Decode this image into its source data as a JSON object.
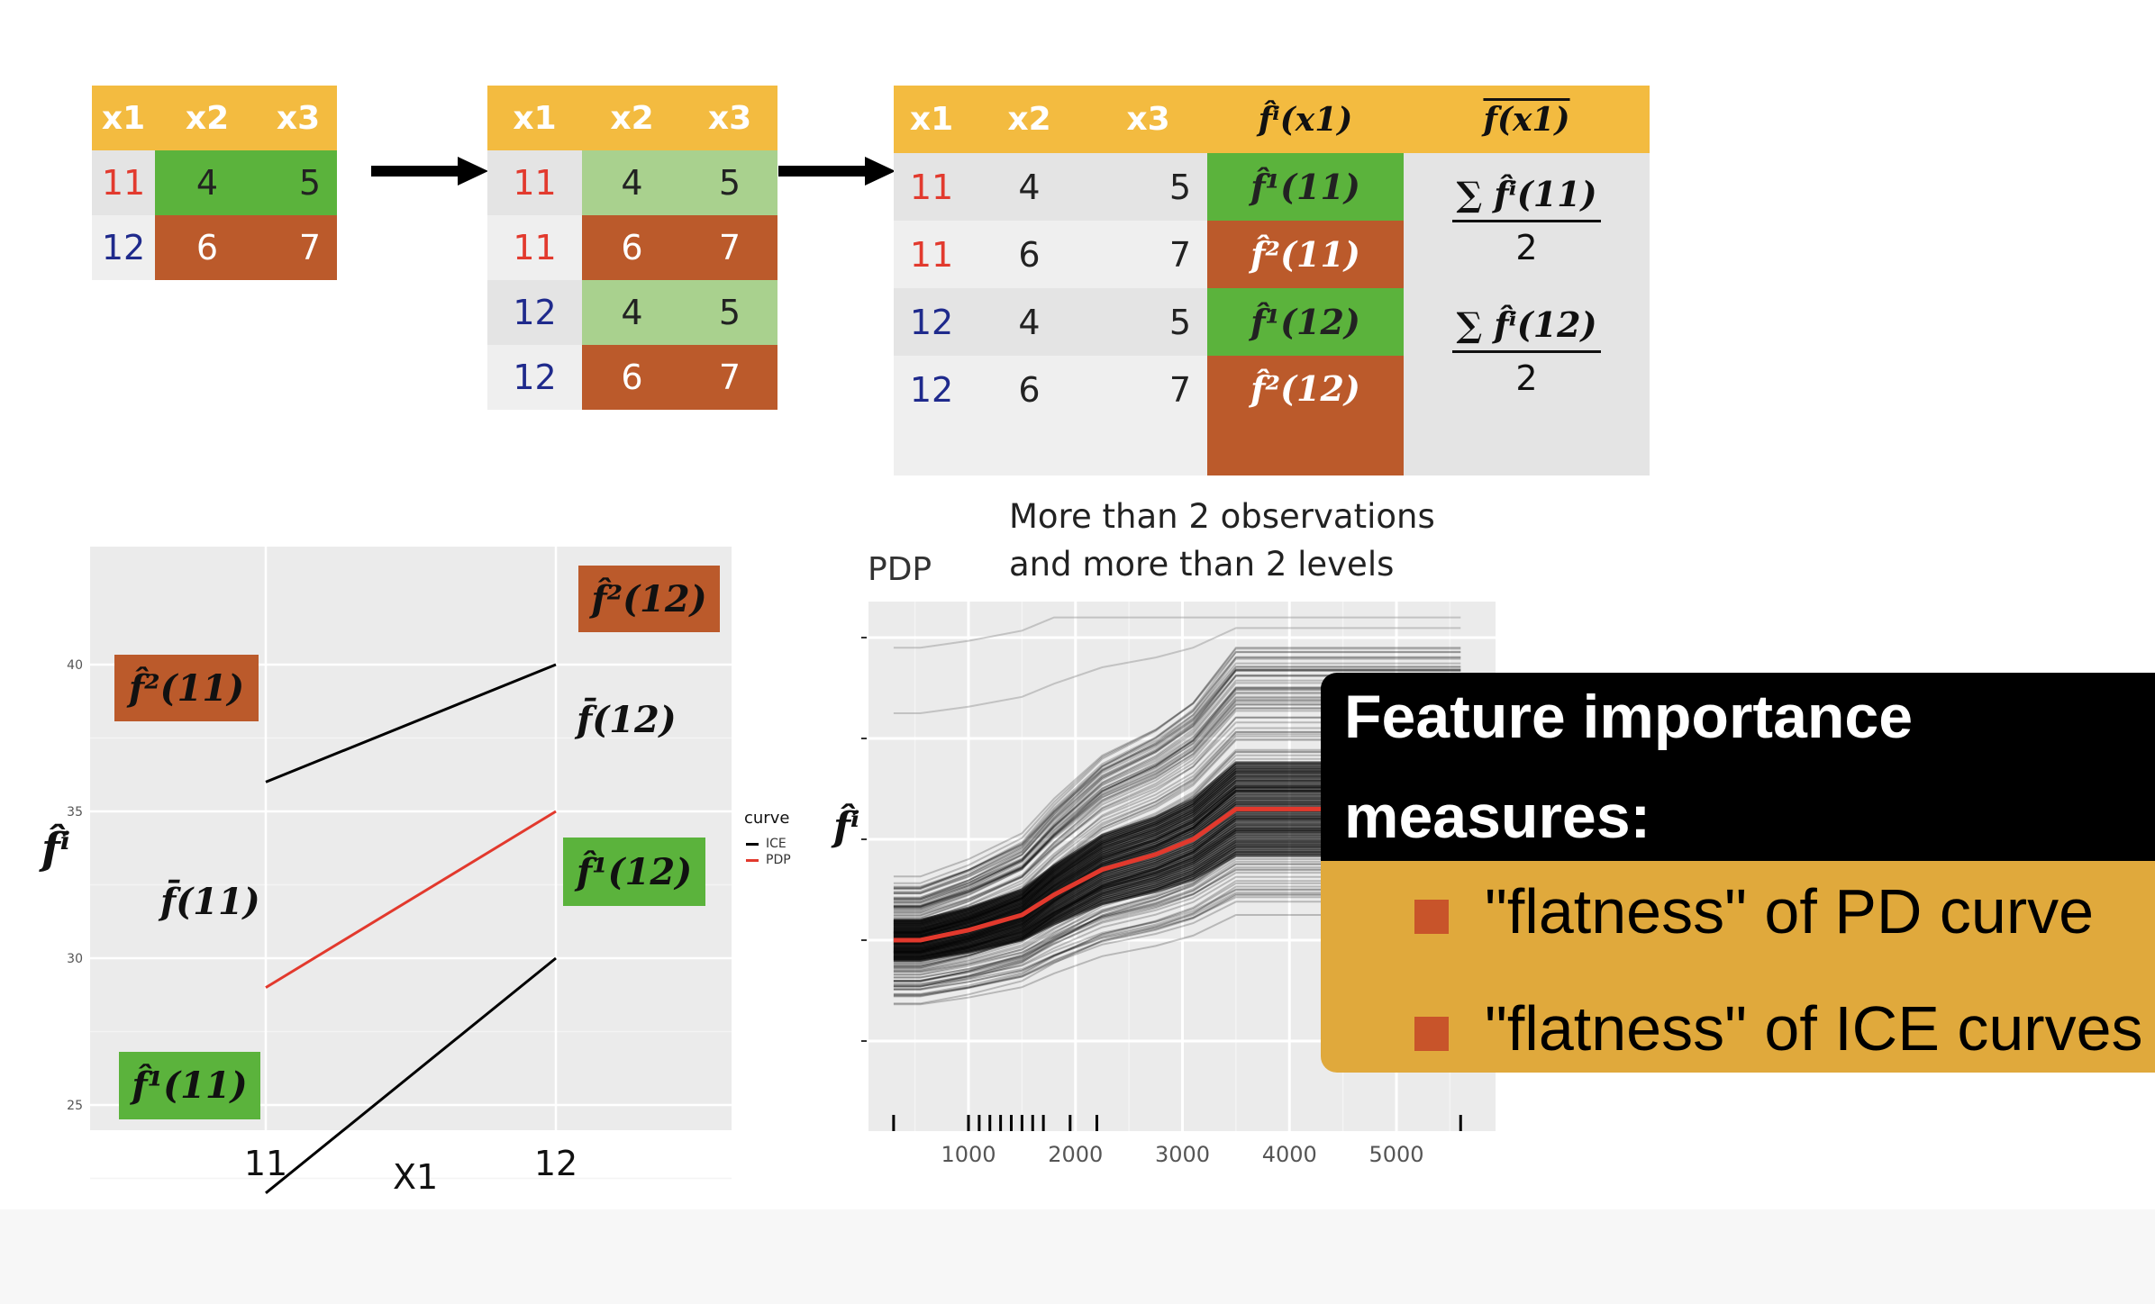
{
  "table1": {
    "headers": [
      "x1",
      "x2",
      "x3"
    ],
    "rows": [
      [
        "11",
        "4",
        "5"
      ],
      [
        "12",
        "6",
        "7"
      ]
    ]
  },
  "table2": {
    "headers": [
      "x1",
      "x2",
      "x3"
    ],
    "rows": [
      [
        "11",
        "4",
        "5"
      ],
      [
        "11",
        "6",
        "7"
      ],
      [
        "12",
        "4",
        "5"
      ],
      [
        "12",
        "6",
        "7"
      ]
    ]
  },
  "table3": {
    "headers": [
      "x1",
      "x2",
      "x3",
      "f̂ⁱ(x1)",
      "f(x1)"
    ],
    "rows": [
      [
        "11",
        "4",
        "5",
        "f̂¹(11)"
      ],
      [
        "11",
        "6",
        "7",
        "f̂²(11)"
      ],
      [
        "12",
        "4",
        "5",
        "f̂¹(12)"
      ],
      [
        "12",
        "6",
        "7",
        "f̂²(12)"
      ]
    ],
    "avg_11_num": "∑ f̂ⁱ(11)",
    "avg_11_den": "2",
    "avg_12_num": "∑ f̂ⁱ(12)",
    "avg_12_den": "2"
  },
  "ice_plot": {
    "y_axis_label": "f̂ⁱ",
    "x_axis_label": "X1",
    "x_ticks": [
      "11",
      "12"
    ],
    "y_ticks": [
      "40",
      "35",
      "30",
      "25"
    ],
    "legend_title": "curve",
    "legend_items": [
      "ICE",
      "PDP"
    ],
    "labels": {
      "f2_11": "f̂²(11)",
      "f2_12": "f̂²(12)",
      "fbar_11": "f̄(11)",
      "fbar_12": "f̄(12)",
      "f1_11": "f̂¹(11)",
      "f1_12": "f̂¹(12)"
    },
    "colors": {
      "ice": "#000000",
      "pdp": "#e2392d",
      "brown_box": "#bb5a2b",
      "green_box": "#5bb33c",
      "panel": "#ebebeb"
    }
  },
  "pdp_plot": {
    "title": "PDP",
    "annotation_line1": "More than 2 observations",
    "annotation_line2": "and more than 2 levels",
    "y_axis_label": "f̂ⁱ",
    "x_ticks": [
      "1000",
      "2000",
      "3000",
      "4000",
      "5000"
    ]
  },
  "chart_data": [
    {
      "type": "line",
      "x": [
        11,
        12
      ],
      "series": [
        {
          "name": "ICE",
          "values": [
            36,
            40
          ]
        },
        {
          "name": "ICE",
          "values": [
            22,
            30
          ]
        },
        {
          "name": "PDP",
          "values": [
            29,
            35
          ]
        }
      ],
      "xlabel": "X1",
      "ylabel": "f̂ⁱ",
      "ylim": [
        21.5,
        41.5
      ],
      "legend": "right",
      "grid": true
    },
    {
      "type": "line",
      "title": "PDP",
      "x": [
        300,
        550,
        1000,
        1500,
        1800,
        2250,
        2750,
        3100,
        3500,
        4200,
        5000,
        5600
      ],
      "series": [
        {
          "name": "PDP",
          "values": [
            0.35,
            0.35,
            0.37,
            0.4,
            0.44,
            0.49,
            0.52,
            0.55,
            0.61,
            0.61,
            0.61,
            0.61
          ]
        }
      ],
      "xlim": [
        250,
        5850
      ],
      "xticks": [
        1000,
        2000,
        3000,
        4000,
        5000
      ],
      "grid": true
    }
  ],
  "overlay": {
    "title_line1": "Feature importance",
    "title_line2": "measures:",
    "bullets": [
      "\"flatness\" of PD curve",
      "\"flatness\" of ICE curves"
    ]
  }
}
